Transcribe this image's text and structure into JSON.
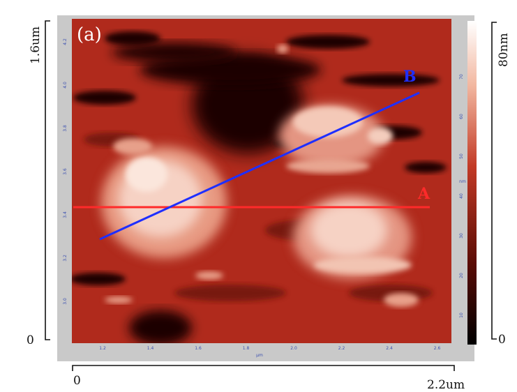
{
  "panel_label": "(a)",
  "y_axis": {
    "max_label": "1.6um",
    "min_label": "0"
  },
  "x_axis": {
    "min_label": "0",
    "max_label": "2.2um"
  },
  "colorbar": {
    "max_label": "80nm",
    "min_label": "0"
  },
  "profile_lines": [
    {
      "label": "A",
      "color": "#ff2a2a"
    },
    {
      "label": "B",
      "color": "#1f2fff"
    }
  ],
  "inner_x_ticks": [
    "1.2",
    "1.4",
    "1.6",
    "1.8",
    "2.0",
    "2.2",
    "2.4",
    "2.6"
  ],
  "inner_x_unit": "µm",
  "inner_y_ticks": [
    "3.0",
    "3.2",
    "3.4",
    "3.6",
    "3.8",
    "4.0",
    "4.2"
  ],
  "inner_y_unit": "µm",
  "inner_colorbar_ticks": [
    "10",
    "20",
    "30",
    "40",
    "50",
    "60",
    "70"
  ],
  "inner_colorbar_unit": "nm",
  "colors": {
    "surface_base": "#b02a1c",
    "surface_dark": "#1a0402",
    "grain_light": "#f6d2c4",
    "frame_gray": "#c9c9c9"
  }
}
